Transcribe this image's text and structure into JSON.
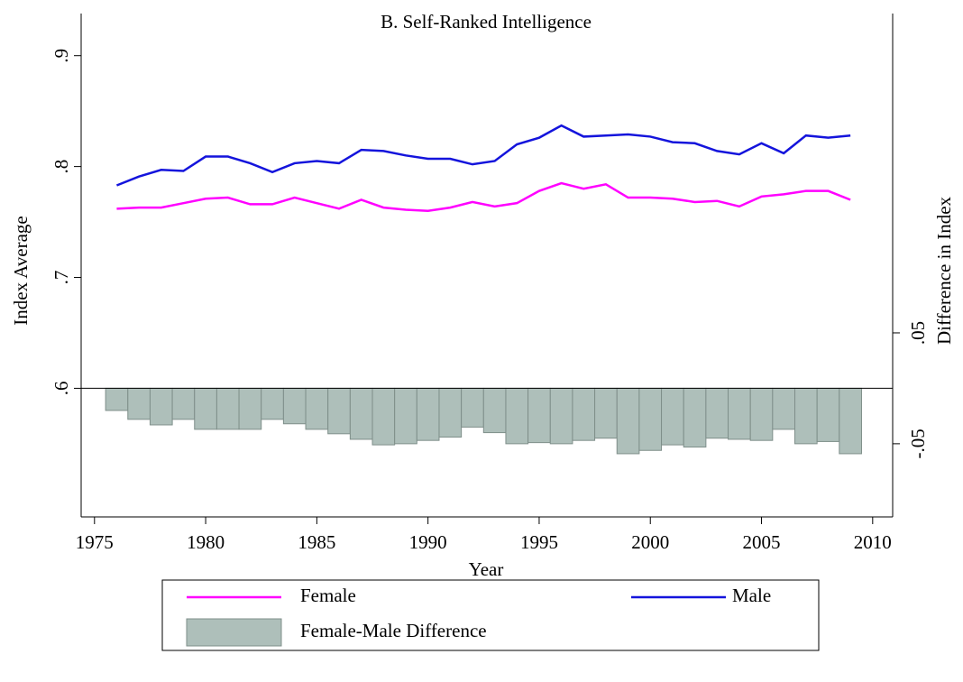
{
  "chart_data": {
    "type": "combo",
    "title": "B. Self-Ranked Intelligence",
    "x_label": "Year",
    "y_label": "Index Average",
    "y2_label": "Difference in Index",
    "x": [
      1976,
      1977,
      1978,
      1979,
      1980,
      1981,
      1982,
      1983,
      1984,
      1985,
      1986,
      1987,
      1988,
      1989,
      1990,
      1991,
      1992,
      1993,
      1994,
      1995,
      1996,
      1997,
      1998,
      1999,
      2000,
      2001,
      2002,
      2003,
      2004,
      2005,
      2006,
      2007,
      2008,
      2009
    ],
    "xlim": [
      1974.4,
      2010.9
    ],
    "xticks": [
      1975,
      1980,
      1985,
      1990,
      1995,
      2000,
      2005,
      2010
    ],
    "ylim": [
      0.484,
      0.938
    ],
    "yticks": [
      {
        "value": 0.6,
        "label": ".6"
      },
      {
        "value": 0.7,
        "label": ".7"
      },
      {
        "value": 0.8,
        "label": ".8"
      },
      {
        "value": 0.9,
        "label": ".9"
      }
    ],
    "y2lim": [
      -0.116,
      0.338
    ],
    "y2ticks": [
      {
        "value": -0.05,
        "label": "-.05"
      },
      {
        "value": 0.05,
        "label": ".05"
      }
    ],
    "series": [
      {
        "name": "Female",
        "type": "line",
        "axis": "y",
        "color": "#ff00ff",
        "values": [
          0.762,
          0.763,
          0.763,
          0.767,
          0.771,
          0.772,
          0.766,
          0.766,
          0.772,
          0.767,
          0.762,
          0.77,
          0.763,
          0.761,
          0.76,
          0.763,
          0.768,
          0.764,
          0.767,
          0.778,
          0.785,
          0.78,
          0.784,
          0.772,
          0.772,
          0.771,
          0.768,
          0.769,
          0.764,
          0.773,
          0.775,
          0.778,
          0.778,
          0.77
        ]
      },
      {
        "name": "Male",
        "type": "line",
        "axis": "y",
        "color": "#1414dc",
        "values": [
          0.783,
          0.791,
          0.797,
          0.796,
          0.809,
          0.809,
          0.803,
          0.795,
          0.803,
          0.805,
          0.803,
          0.815,
          0.814,
          0.81,
          0.807,
          0.807,
          0.802,
          0.805,
          0.82,
          0.826,
          0.837,
          0.827,
          0.828,
          0.829,
          0.827,
          0.822,
          0.821,
          0.814,
          0.811,
          0.821,
          0.812,
          0.828,
          0.826,
          0.828
        ]
      },
      {
        "name": "Female-Male Difference",
        "type": "bar",
        "axis": "y2",
        "color": "#aebfba",
        "values": [
          -0.02,
          -0.028,
          -0.033,
          -0.028,
          -0.037,
          -0.037,
          -0.037,
          -0.028,
          -0.032,
          -0.037,
          -0.041,
          -0.046,
          -0.051,
          -0.05,
          -0.047,
          -0.044,
          -0.035,
          -0.04,
          -0.05,
          -0.049,
          -0.05,
          -0.047,
          -0.045,
          -0.059,
          -0.056,
          -0.051,
          -0.053,
          -0.045,
          -0.046,
          -0.047,
          -0.037,
          -0.05,
          -0.048,
          -0.059
        ]
      }
    ]
  }
}
